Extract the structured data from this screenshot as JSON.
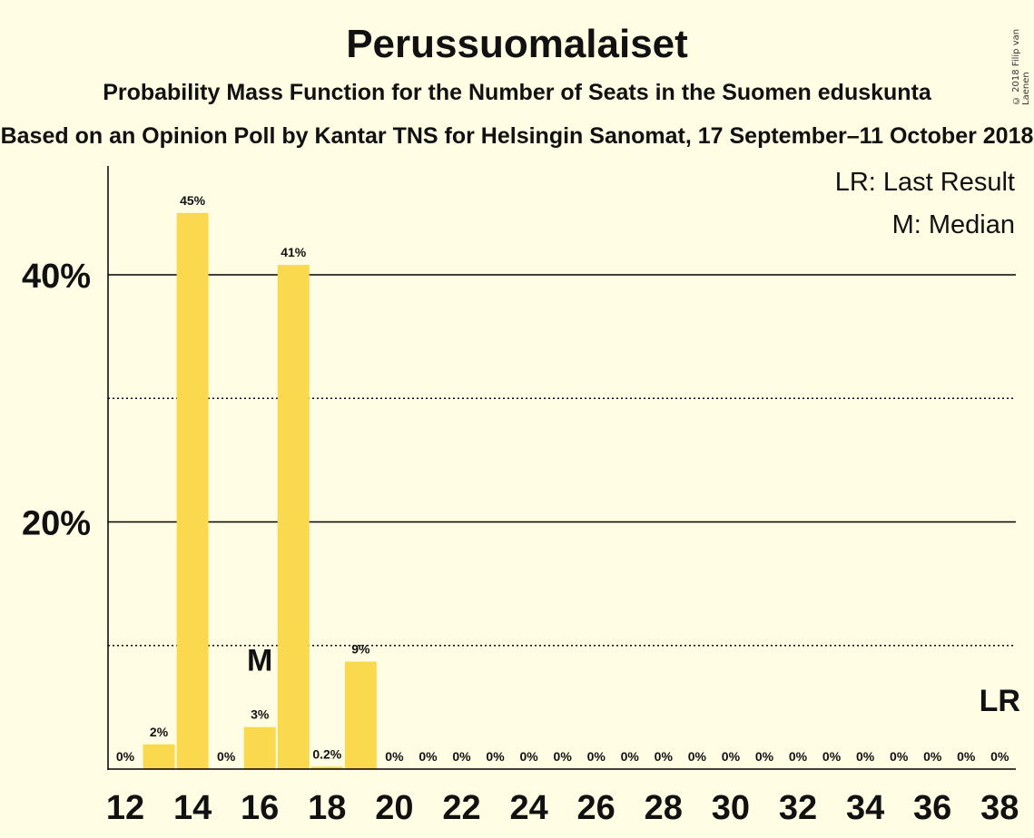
{
  "chart_data": {
    "type": "bar",
    "title": "Perussuomalaiset",
    "subtitle": "Probability Mass Function for the Number of Seats in the Suomen eduskunta",
    "subsubtitle": "Based on an Opinion Poll by Kantar TNS for Helsingin Sanomat, 17 September–11 October 2018",
    "copyright": "© 2018 Filip van Laenen",
    "x": [
      12,
      13,
      14,
      15,
      16,
      17,
      18,
      19,
      20,
      21,
      22,
      23,
      24,
      25,
      26,
      27,
      28,
      29,
      30,
      31,
      32,
      33,
      34,
      35,
      36,
      37,
      38
    ],
    "values": [
      0,
      2,
      45,
      0,
      3.4,
      40.8,
      0.2,
      8.7,
      0,
      0,
      0,
      0,
      0,
      0,
      0,
      0,
      0,
      0,
      0,
      0,
      0,
      0,
      0,
      0,
      0,
      0,
      0
    ],
    "labels": [
      "0%",
      "2%",
      "45%",
      "0%",
      "3%",
      "41%",
      "0.2%",
      "9%",
      "0%",
      "0%",
      "0%",
      "0%",
      "0%",
      "0%",
      "0%",
      "0%",
      "0%",
      "0%",
      "0%",
      "0%",
      "0%",
      "0%",
      "0%",
      "0%",
      "0%",
      "0%",
      "0%"
    ],
    "x_tick_labels": [
      "12",
      "14",
      "16",
      "18",
      "20",
      "22",
      "24",
      "26",
      "28",
      "30",
      "32",
      "34",
      "36",
      "38"
    ],
    "y_tick_labels": [
      "20%",
      "40%"
    ],
    "ylim": [
      0,
      49
    ],
    "gridlines_solid": [
      20,
      40
    ],
    "gridlines_dotted": [
      10,
      30
    ],
    "median_seat": 16,
    "median_marker": "M",
    "last_result_seat": 38,
    "last_result_marker": "LR",
    "legend": [
      "LR: Last Result",
      "M: Median"
    ],
    "legend_position": "top-right",
    "bar_color": "#FBD94E"
  }
}
